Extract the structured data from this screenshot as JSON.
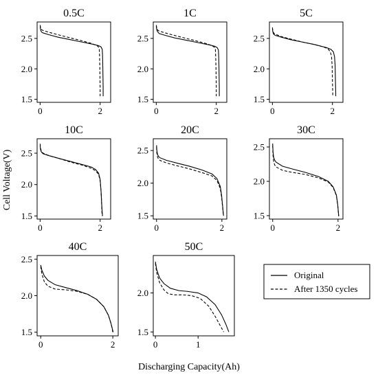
{
  "figure": {
    "ylabel": "Cell Voltage(V)",
    "xlabel": "Discharging Capacity(Ah)",
    "legend": {
      "placement": "bottom-right",
      "entries": [
        {
          "label": "Original",
          "style": "solid"
        },
        {
          "label": "After 1350 cycles",
          "style": "dashed"
        }
      ]
    }
  },
  "chart_data": [
    {
      "type": "line",
      "title": "0.5C",
      "xlim": [
        -0.1,
        2.35
      ],
      "ylim": [
        1.45,
        2.77
      ],
      "xticks": [
        0,
        2
      ],
      "yticks": [
        1.5,
        2.0,
        2.5
      ],
      "series": [
        {
          "name": "Original",
          "style": "solid",
          "x": [
            0,
            0.01,
            0.03,
            0.06,
            0.1,
            0.3,
            0.6,
            1.0,
            1.4,
            1.8,
            1.95,
            2.03,
            2.07,
            2.08,
            2.09,
            2.1,
            2.1
          ],
          "y": [
            2.7,
            2.66,
            2.62,
            2.6,
            2.59,
            2.56,
            2.52,
            2.48,
            2.44,
            2.4,
            2.38,
            2.36,
            2.32,
            2.22,
            2.0,
            1.7,
            1.55
          ]
        },
        {
          "name": "After 1350 cycles",
          "style": "dashed",
          "x": [
            0,
            0.01,
            0.03,
            0.06,
            0.1,
            0.3,
            0.6,
            1.0,
            1.4,
            1.7,
            1.85,
            1.93,
            1.97,
            1.98,
            1.99,
            2.0,
            2.0
          ],
          "y": [
            2.72,
            2.69,
            2.66,
            2.64,
            2.63,
            2.6,
            2.56,
            2.51,
            2.46,
            2.42,
            2.39,
            2.37,
            2.33,
            2.22,
            2.0,
            1.7,
            1.55
          ]
        }
      ]
    },
    {
      "type": "line",
      "title": "1C",
      "xlim": [
        -0.1,
        2.35
      ],
      "ylim": [
        1.45,
        2.77
      ],
      "xticks": [
        0,
        2
      ],
      "yticks": [
        1.5,
        2.0,
        2.5
      ],
      "series": [
        {
          "name": "Original",
          "style": "solid",
          "x": [
            0,
            0.01,
            0.03,
            0.06,
            0.1,
            0.3,
            0.6,
            1.0,
            1.4,
            1.8,
            1.95,
            2.03,
            2.07,
            2.08,
            2.09,
            2.1,
            2.1
          ],
          "y": [
            2.7,
            2.66,
            2.62,
            2.6,
            2.58,
            2.55,
            2.51,
            2.47,
            2.43,
            2.39,
            2.37,
            2.35,
            2.31,
            2.2,
            2.0,
            1.7,
            1.55
          ]
        },
        {
          "name": "After 1350 cycles",
          "style": "dashed",
          "x": [
            0,
            0.01,
            0.03,
            0.06,
            0.1,
            0.3,
            0.6,
            1.0,
            1.4,
            1.7,
            1.85,
            1.93,
            1.97,
            1.98,
            1.99,
            2.0,
            2.0
          ],
          "y": [
            2.72,
            2.69,
            2.65,
            2.63,
            2.62,
            2.59,
            2.55,
            2.5,
            2.45,
            2.41,
            2.38,
            2.36,
            2.32,
            2.2,
            2.0,
            1.7,
            1.55
          ]
        }
      ]
    },
    {
      "type": "line",
      "title": "5C",
      "xlim": [
        -0.1,
        2.35
      ],
      "ylim": [
        1.45,
        2.77
      ],
      "xticks": [
        0,
        2
      ],
      "yticks": [
        1.5,
        2.0,
        2.5
      ],
      "series": [
        {
          "name": "Original",
          "style": "solid",
          "x": [
            0,
            0.01,
            0.03,
            0.06,
            0.1,
            0.3,
            0.6,
            1.0,
            1.4,
            1.8,
            1.95,
            2.03,
            2.07,
            2.09,
            2.1,
            2.11,
            2.11
          ],
          "y": [
            2.66,
            2.62,
            2.58,
            2.56,
            2.55,
            2.52,
            2.48,
            2.44,
            2.4,
            2.35,
            2.32,
            2.28,
            2.2,
            2.05,
            1.8,
            1.6,
            1.55
          ]
        },
        {
          "name": "After 1350 cycles",
          "style": "dashed",
          "x": [
            0,
            0.01,
            0.03,
            0.06,
            0.1,
            0.3,
            0.6,
            1.0,
            1.4,
            1.7,
            1.85,
            1.93,
            1.97,
            1.99,
            2.0,
            2.01,
            2.01
          ],
          "y": [
            2.68,
            2.64,
            2.6,
            2.58,
            2.57,
            2.53,
            2.49,
            2.44,
            2.4,
            2.36,
            2.33,
            2.28,
            2.2,
            2.05,
            1.8,
            1.6,
            1.55
          ]
        }
      ]
    },
    {
      "type": "line",
      "title": "10C",
      "xlim": [
        -0.1,
        2.35
      ],
      "ylim": [
        1.45,
        2.73
      ],
      "xticks": [
        0,
        2
      ],
      "yticks": [
        1.5,
        2.0,
        2.5
      ],
      "series": [
        {
          "name": "Original",
          "style": "solid",
          "x": [
            0,
            0.01,
            0.03,
            0.06,
            0.1,
            0.3,
            0.6,
            1.0,
            1.4,
            1.7,
            1.85,
            1.95,
            2.0,
            2.03,
            2.05,
            2.07,
            2.08
          ],
          "y": [
            2.62,
            2.57,
            2.53,
            2.51,
            2.49,
            2.46,
            2.42,
            2.37,
            2.32,
            2.28,
            2.24,
            2.18,
            2.08,
            1.9,
            1.7,
            1.55,
            1.5
          ]
        },
        {
          "name": "After 1350 cycles",
          "style": "dashed",
          "x": [
            0,
            0.01,
            0.03,
            0.06,
            0.1,
            0.3,
            0.6,
            1.0,
            1.4,
            1.7,
            1.85,
            1.95,
            2.0,
            2.03,
            2.05,
            2.06,
            2.07
          ],
          "y": [
            2.65,
            2.59,
            2.55,
            2.52,
            2.5,
            2.46,
            2.42,
            2.36,
            2.31,
            2.26,
            2.22,
            2.16,
            2.06,
            1.9,
            1.7,
            1.55,
            1.5
          ]
        }
      ]
    },
    {
      "type": "line",
      "title": "20C",
      "xlim": [
        -0.1,
        2.15
      ],
      "ylim": [
        1.45,
        2.68
      ],
      "xticks": [
        0,
        2
      ],
      "yticks": [
        1.5,
        2.0,
        2.5
      ],
      "series": [
        {
          "name": "Original",
          "style": "solid",
          "x": [
            0,
            0.01,
            0.03,
            0.06,
            0.1,
            0.3,
            0.6,
            1.0,
            1.4,
            1.7,
            1.85,
            1.95,
            1.99,
            2.02,
            2.04,
            2.05
          ],
          "y": [
            2.58,
            2.5,
            2.44,
            2.41,
            2.39,
            2.35,
            2.31,
            2.26,
            2.2,
            2.14,
            2.07,
            1.95,
            1.82,
            1.66,
            1.55,
            1.5
          ]
        },
        {
          "name": "After 1350 cycles",
          "style": "dashed",
          "x": [
            0,
            0.01,
            0.03,
            0.06,
            0.1,
            0.3,
            0.6,
            1.0,
            1.4,
            1.7,
            1.85,
            1.95,
            1.99,
            2.02,
            2.04,
            2.05
          ],
          "y": [
            2.55,
            2.46,
            2.4,
            2.37,
            2.35,
            2.31,
            2.27,
            2.22,
            2.16,
            2.11,
            2.04,
            1.92,
            1.79,
            1.64,
            1.54,
            1.5
          ]
        }
      ]
    },
    {
      "type": "line",
      "title": "30C",
      "xlim": [
        -0.1,
        2.15
      ],
      "ylim": [
        1.45,
        2.62
      ],
      "xticks": [
        0,
        2
      ],
      "yticks": [
        1.5,
        2.0,
        2.5
      ],
      "series": [
        {
          "name": "Original",
          "style": "solid",
          "x": [
            0,
            0.01,
            0.03,
            0.06,
            0.1,
            0.3,
            0.6,
            1.0,
            1.4,
            1.7,
            1.85,
            1.95,
            1.99,
            2.01,
            2.02
          ],
          "y": [
            2.55,
            2.43,
            2.35,
            2.31,
            2.28,
            2.22,
            2.18,
            2.13,
            2.07,
            2.0,
            1.92,
            1.8,
            1.66,
            1.55,
            1.5
          ]
        },
        {
          "name": "After 1350 cycles",
          "style": "dashed",
          "x": [
            0,
            0.01,
            0.03,
            0.06,
            0.1,
            0.3,
            0.6,
            1.0,
            1.4,
            1.7,
            1.85,
            1.95,
            1.99,
            2.01,
            2.02
          ],
          "y": [
            2.52,
            2.38,
            2.29,
            2.24,
            2.21,
            2.16,
            2.13,
            2.1,
            2.05,
            1.99,
            1.91,
            1.79,
            1.65,
            1.54,
            1.49
          ]
        }
      ]
    },
    {
      "type": "line",
      "title": "40C",
      "xlim": [
        -0.1,
        2.15
      ],
      "ylim": [
        1.45,
        2.55
      ],
      "xticks": [
        0,
        2
      ],
      "yticks": [
        1.5,
        2.0,
        2.5
      ],
      "series": [
        {
          "name": "Original",
          "style": "solid",
          "x": [
            0,
            0.03,
            0.1,
            0.2,
            0.4,
            0.7,
            1.0,
            1.3,
            1.55,
            1.75,
            1.88,
            1.95,
            1.99,
            2.01
          ],
          "y": [
            2.42,
            2.35,
            2.27,
            2.21,
            2.15,
            2.11,
            2.07,
            2.02,
            1.95,
            1.85,
            1.73,
            1.62,
            1.54,
            1.5
          ]
        },
        {
          "name": "After 1350 cycles",
          "style": "dashed",
          "x": [
            0,
            0.03,
            0.1,
            0.2,
            0.4,
            0.7,
            1.0,
            1.3,
            1.55,
            1.75,
            1.88,
            1.95,
            1.99,
            2.0
          ],
          "y": [
            2.4,
            2.3,
            2.19,
            2.13,
            2.09,
            2.08,
            2.06,
            2.02,
            1.95,
            1.85,
            1.73,
            1.62,
            1.53,
            1.49
          ]
        }
      ]
    },
    {
      "type": "line",
      "title": "50C",
      "xlim": [
        -0.05,
        1.85
      ],
      "ylim": [
        1.45,
        2.48
      ],
      "xticks": [
        0,
        1
      ],
      "yticks": [
        1.5,
        2.0
      ],
      "series": [
        {
          "name": "Original",
          "style": "solid",
          "x": [
            0,
            0.03,
            0.1,
            0.2,
            0.35,
            0.55,
            0.75,
            1.0,
            1.2,
            1.4,
            1.55,
            1.65,
            1.72
          ],
          "y": [
            2.4,
            2.3,
            2.19,
            2.12,
            2.06,
            2.03,
            2.02,
            2.0,
            1.95,
            1.85,
            1.72,
            1.6,
            1.5
          ]
        },
        {
          "name": "After 1350 cycles",
          "style": "dashed",
          "x": [
            0,
            0.03,
            0.1,
            0.2,
            0.3,
            0.45,
            0.65,
            0.85,
            1.05,
            1.25,
            1.4,
            1.52,
            1.6
          ],
          "y": [
            2.38,
            2.26,
            2.13,
            2.04,
            1.99,
            1.975,
            1.975,
            1.965,
            1.93,
            1.83,
            1.7,
            1.58,
            1.5
          ]
        }
      ]
    }
  ]
}
